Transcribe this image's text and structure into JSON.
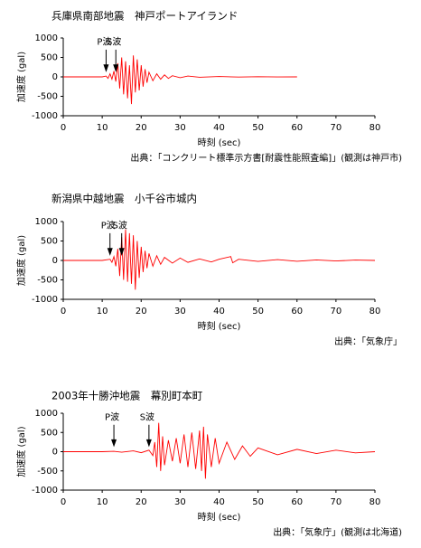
{
  "chart_data": [
    {
      "type": "line",
      "title": "兵庫県南部地震　神戸ポートアイランド",
      "source": "出典：「コンクリート標準示方書[耐震性能照査編]」(観測は神戸市)",
      "xlabel": "時刻 (sec)",
      "ylabel": "加速度 (gal)",
      "xlim": [
        0,
        80
      ],
      "ylim": [
        -1000,
        1000
      ],
      "xticks": [
        0,
        10,
        20,
        30,
        40,
        50,
        60,
        70,
        80
      ],
      "yticks": [
        -1000,
        -500,
        0,
        500,
        1000
      ],
      "annotations": [
        {
          "text": "P波",
          "x": 11
        },
        {
          "text": "S波",
          "x": 13.5
        }
      ],
      "series": [
        {
          "color": "#ff0000",
          "x": [
            0,
            5,
            10,
            11,
            11.5,
            12,
            12.5,
            13,
            13.5,
            14,
            14.5,
            15,
            15.5,
            16,
            16.5,
            17,
            17.5,
            18,
            18.5,
            19,
            19.5,
            20,
            20.5,
            21,
            21.5,
            22,
            23,
            24,
            25,
            26,
            27,
            28,
            30,
            32,
            35,
            40,
            45,
            50,
            55,
            60
          ],
          "values": [
            0,
            0,
            0,
            20,
            -40,
            80,
            -60,
            150,
            -120,
            350,
            -300,
            500,
            -450,
            400,
            -550,
            300,
            -700,
            550,
            -400,
            450,
            -350,
            300,
            -250,
            200,
            -150,
            120,
            -100,
            80,
            -60,
            50,
            -40,
            30,
            -20,
            20,
            -10,
            10,
            -5,
            5,
            -3,
            0
          ]
        }
      ]
    },
    {
      "type": "line",
      "title": "新潟県中越地震　小千谷市城内",
      "source": "出典：「気象庁」",
      "xlabel": "時刻 (sec)",
      "ylabel": "加速度 (gal)",
      "xlim": [
        0,
        80
      ],
      "ylim": [
        -1000,
        1000
      ],
      "xticks": [
        0,
        10,
        20,
        30,
        40,
        50,
        60,
        70,
        80
      ],
      "yticks": [
        -1000,
        -500,
        0,
        500,
        1000
      ],
      "annotations": [
        {
          "text": "P波",
          "x": 12
        },
        {
          "text": "S波",
          "x": 15
        }
      ],
      "series": [
        {
          "color": "#ff0000",
          "x": [
            0,
            10,
            12,
            12.5,
            13,
            13.5,
            14,
            14.5,
            15,
            15.5,
            16,
            16.5,
            17,
            17.5,
            18,
            18.5,
            19,
            19.5,
            20,
            20.5,
            21,
            21.5,
            22,
            23,
            24,
            25,
            26,
            28,
            30,
            32,
            35,
            38,
            40,
            43,
            43.5,
            45,
            50,
            55,
            60,
            65,
            70,
            75,
            80
          ],
          "values": [
            0,
            0,
            30,
            -50,
            100,
            -150,
            300,
            -400,
            600,
            -500,
            800,
            -550,
            700,
            -600,
            650,
            -750,
            500,
            -450,
            350,
            -300,
            250,
            -200,
            180,
            -150,
            120,
            -100,
            80,
            -70,
            60,
            -50,
            40,
            -40,
            30,
            100,
            -60,
            30,
            -25,
            20,
            -20,
            15,
            -15,
            10,
            0
          ]
        }
      ]
    },
    {
      "type": "line",
      "title": "2003年十勝沖地震　幕別町本町",
      "source": "出典：「気象庁」(観測は北海道)",
      "xlabel": "時刻 (sec)",
      "ylabel": "加速度 (gal)",
      "xlim": [
        0,
        80
      ],
      "ylim": [
        -1000,
        1000
      ],
      "xticks": [
        0,
        10,
        20,
        30,
        40,
        50,
        60,
        70,
        80
      ],
      "yticks": [
        -1000,
        -500,
        0,
        500,
        1000
      ],
      "annotations": [
        {
          "text": "P波",
          "x": 13
        },
        {
          "text": "S波",
          "x": 22
        }
      ],
      "series": [
        {
          "color": "#ff0000",
          "x": [
            0,
            10,
            13,
            15,
            18,
            20,
            22,
            23,
            23.5,
            24,
            24.5,
            25,
            25.5,
            26,
            27,
            28,
            29,
            30,
            31,
            32,
            33,
            34,
            35,
            35.5,
            36,
            36.5,
            37,
            38,
            39,
            40,
            42,
            44,
            46,
            48,
            50,
            55,
            60,
            65,
            70,
            75,
            80
          ],
          "values": [
            0,
            0,
            10,
            -15,
            20,
            -25,
            40,
            -100,
            250,
            -400,
            750,
            -500,
            400,
            -350,
            300,
            -250,
            350,
            -300,
            450,
            -400,
            500,
            -450,
            550,
            -500,
            650,
            -700,
            450,
            -400,
            350,
            -300,
            250,
            -200,
            150,
            -120,
            100,
            -80,
            60,
            -50,
            40,
            -30,
            0
          ]
        }
      ]
    }
  ]
}
